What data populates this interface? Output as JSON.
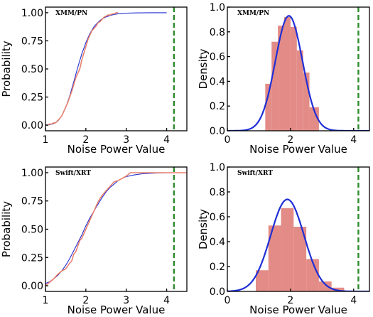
{
  "colors": {
    "fit": "#1f2fd6",
    "empirical": "#e8816e",
    "histogram": "#e07f7a",
    "threshold": "#2e8b2e"
  },
  "chart_data": [
    {
      "id": "ecdf_xmm",
      "type": "line",
      "annotation": "XMM/PN",
      "xlabel": "Noise Power Value",
      "ylabel": "Probability",
      "xlim": [
        1.0,
        4.5
      ],
      "ylim": [
        -0.05,
        1.05
      ],
      "xticks": [
        1,
        2,
        3,
        4
      ],
      "yticks": [
        0.0,
        0.25,
        0.5,
        0.75,
        1.0
      ],
      "ytick_labels": [
        "0.00",
        "0.25",
        "0.50",
        "0.75",
        "1.00"
      ],
      "threshold_x": 4.18,
      "series": [
        {
          "role": "fit",
          "x": [
            1.0,
            1.1,
            1.2,
            1.3,
            1.4,
            1.5,
            1.6,
            1.7,
            1.8,
            1.9,
            2.0,
            2.1,
            2.2,
            2.3,
            2.4,
            2.5,
            2.6,
            2.7,
            2.8,
            2.9,
            3.0,
            3.2,
            3.4,
            3.6,
            3.8,
            4.0
          ],
          "y": [
            0.001,
            0.004,
            0.013,
            0.035,
            0.08,
            0.155,
            0.26,
            0.385,
            0.515,
            0.635,
            0.735,
            0.815,
            0.875,
            0.915,
            0.945,
            0.963,
            0.976,
            0.985,
            0.99,
            0.994,
            0.996,
            0.998,
            0.999,
            1.0,
            1.0,
            1.0
          ]
        },
        {
          "role": "empirical",
          "x": [
            1.0,
            1.05,
            1.1,
            1.15,
            1.2,
            1.25,
            1.3,
            1.35,
            1.4,
            1.45,
            1.5,
            1.55,
            1.6,
            1.65,
            1.7,
            1.75,
            1.8,
            1.85,
            1.9,
            1.95,
            2.0,
            2.05,
            2.1,
            2.15,
            2.2,
            2.25,
            2.3,
            2.35,
            2.4,
            2.45,
            2.5,
            2.55,
            2.6,
            2.65,
            2.7,
            2.75,
            2.8
          ],
          "y": [
            0.0,
            0.0,
            0.01,
            0.01,
            0.02,
            0.02,
            0.04,
            0.06,
            0.08,
            0.12,
            0.16,
            0.2,
            0.25,
            0.3,
            0.36,
            0.42,
            0.46,
            0.5,
            0.58,
            0.64,
            0.7,
            0.76,
            0.8,
            0.84,
            0.86,
            0.88,
            0.91,
            0.92,
            0.94,
            0.96,
            0.97,
            0.98,
            0.98,
            0.99,
            0.99,
            1.0,
            1.0
          ]
        }
      ]
    },
    {
      "id": "density_xmm",
      "type": "histogram",
      "annotation": "XMM/PN",
      "xlabel": "Noise Power Value",
      "ylabel": "Density",
      "xlim": [
        0,
        4.5
      ],
      "ylim": [
        0,
        1.0
      ],
      "xticks": [
        0,
        2,
        4
      ],
      "yticks": [
        0.0,
        0.2,
        0.4,
        0.6,
        0.8,
        1.0
      ],
      "ytick_labels": [
        "0.0",
        "0.2",
        "0.4",
        "0.6",
        "0.8",
        "1.0"
      ],
      "threshold_x": 4.15,
      "bins": [
        {
          "from": 1.2,
          "to": 1.4,
          "value": 0.38
        },
        {
          "from": 1.4,
          "to": 1.6,
          "value": 0.72
        },
        {
          "from": 1.6,
          "to": 1.8,
          "value": 0.85
        },
        {
          "from": 1.8,
          "to": 2.0,
          "value": 0.92
        },
        {
          "from": 2.0,
          "to": 2.2,
          "value": 0.84
        },
        {
          "from": 2.2,
          "to": 2.4,
          "value": 0.65
        },
        {
          "from": 2.4,
          "to": 2.6,
          "value": 0.47
        },
        {
          "from": 2.6,
          "to": 2.9,
          "value": 0.19
        }
      ],
      "fit": {
        "mu": 1.95,
        "sigma": 0.43,
        "peak": 0.93
      }
    },
    {
      "id": "ecdf_swift",
      "type": "line",
      "annotation": "Swift/XRT",
      "xlabel": "Noise Power Value",
      "ylabel": "Probability",
      "xlim": [
        1.0,
        4.5
      ],
      "ylim": [
        -0.05,
        1.05
      ],
      "xticks": [
        1,
        2,
        3,
        4
      ],
      "yticks": [
        0.0,
        0.25,
        0.5,
        0.75,
        1.0
      ],
      "ytick_labels": [
        "0.00",
        "0.25",
        "0.50",
        "0.75",
        "1.00"
      ],
      "threshold_x": 4.18,
      "series": [
        {
          "role": "fit",
          "x": [
            1.0,
            1.1,
            1.2,
            1.3,
            1.4,
            1.5,
            1.6,
            1.7,
            1.8,
            1.9,
            2.0,
            2.1,
            2.2,
            2.3,
            2.4,
            2.5,
            2.6,
            2.7,
            2.8,
            2.9,
            3.0,
            3.2,
            3.4,
            3.6,
            3.8,
            4.0,
            4.2,
            4.5
          ],
          "y": [
            0.02,
            0.035,
            0.06,
            0.09,
            0.13,
            0.18,
            0.24,
            0.31,
            0.38,
            0.45,
            0.53,
            0.6,
            0.66,
            0.72,
            0.78,
            0.83,
            0.87,
            0.9,
            0.93,
            0.95,
            0.965,
            0.98,
            0.99,
            0.995,
            0.998,
            0.999,
            1.0,
            1.0
          ]
        },
        {
          "role": "empirical",
          "x": [
            1.0,
            1.1,
            1.2,
            1.3,
            1.4,
            1.5,
            1.6,
            1.65,
            1.7,
            1.75,
            1.8,
            1.85,
            1.9,
            1.95,
            2.0,
            2.1,
            2.2,
            2.3,
            2.4,
            2.5,
            2.6,
            2.7,
            2.8,
            2.9,
            3.0,
            3.1,
            3.2,
            4.1,
            4.5
          ],
          "y": [
            0.0,
            0.03,
            0.06,
            0.1,
            0.13,
            0.15,
            0.2,
            0.22,
            0.28,
            0.3,
            0.35,
            0.4,
            0.42,
            0.46,
            0.5,
            0.58,
            0.66,
            0.74,
            0.8,
            0.84,
            0.88,
            0.92,
            0.93,
            0.95,
            0.97,
            1.0,
            1.0,
            1.0,
            1.0
          ]
        }
      ]
    },
    {
      "id": "density_swift",
      "type": "histogram",
      "annotation": "Swift/XRT",
      "xlabel": "Noise Power Value",
      "ylabel": "Density",
      "xlim": [
        0,
        4.5
      ],
      "ylim": [
        0,
        1.0
      ],
      "xticks": [
        0,
        2,
        4
      ],
      "yticks": [
        0.0,
        0.2,
        0.4,
        0.6,
        0.8,
        1.0
      ],
      "ytick_labels": [
        "0.0",
        "0.2",
        "0.4",
        "0.6",
        "0.8",
        "1.0"
      ],
      "threshold_x": 4.15,
      "bins": [
        {
          "from": 0.9,
          "to": 1.3,
          "value": 0.17
        },
        {
          "from": 1.3,
          "to": 1.7,
          "value": 0.53
        },
        {
          "from": 1.7,
          "to": 2.1,
          "value": 0.67
        },
        {
          "from": 2.1,
          "to": 2.5,
          "value": 0.52
        },
        {
          "from": 2.5,
          "to": 2.9,
          "value": 0.26
        },
        {
          "from": 2.9,
          "to": 3.3,
          "value": 0.08
        },
        {
          "from": 3.3,
          "to": 3.7,
          "value": 0.03
        }
      ],
      "fit": {
        "mu": 1.9,
        "sigma": 0.53,
        "peak": 0.74
      }
    }
  ]
}
